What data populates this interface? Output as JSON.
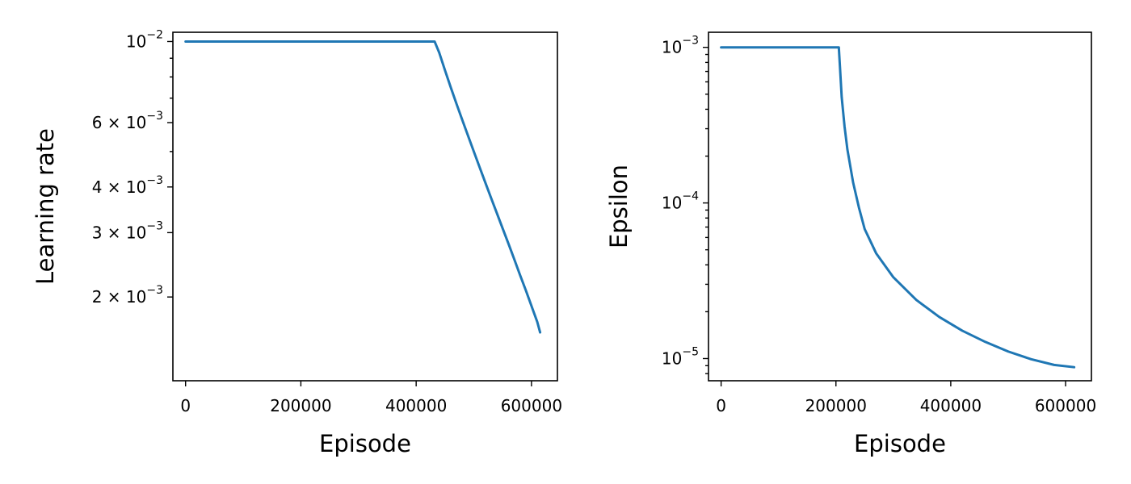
{
  "chart_data": [
    {
      "type": "line",
      "xlabel": "Episode",
      "ylabel": "Learning rate",
      "yscale": "log",
      "xlim": [
        -22000,
        645000
      ],
      "ylim": [
        0.00118,
        0.0106
      ],
      "grid": false,
      "color": "#1f77b4",
      "x_ticks": [
        {
          "value": 0,
          "label": "0"
        },
        {
          "value": 200000,
          "label": "200000"
        },
        {
          "value": 400000,
          "label": "400000"
        },
        {
          "value": 600000,
          "label": "600000"
        }
      ],
      "y_ticks": [
        {
          "value": 0.01,
          "base": "10",
          "exp": "−2"
        },
        {
          "value": 0.006,
          "base": "6 × 10",
          "exp": "−3"
        },
        {
          "value": 0.004,
          "base": "4 × 10",
          "exp": "−3"
        },
        {
          "value": 0.003,
          "base": "3 × 10",
          "exp": "−3"
        },
        {
          "value": 0.002,
          "base": "2 × 10",
          "exp": "−3"
        }
      ],
      "y_minor_ticks": [
        0.009,
        0.008,
        0.007,
        0.005
      ],
      "series": [
        {
          "x": [
            0,
            432000,
            440000,
            450000,
            460000,
            470000,
            480000,
            490000,
            500000,
            510000,
            520000,
            530000,
            540000,
            550000,
            560000,
            570000,
            580000,
            590000,
            600000,
            610000,
            615000
          ],
          "y": [
            0.01,
            0.01,
            0.00932,
            0.00834,
            0.00749,
            0.00675,
            0.0061,
            0.00552,
            0.005,
            0.00453,
            0.00411,
            0.00373,
            0.00339,
            0.00308,
            0.0028,
            0.00254,
            0.0023,
            0.00209,
            0.00189,
            0.00171,
            0.0016
          ]
        }
      ]
    },
    {
      "type": "line",
      "xlabel": "Episode",
      "ylabel": "Epsilon",
      "yscale": "log",
      "xlim": [
        -22000,
        645000
      ],
      "ylim": [
        7.2e-06,
        0.00125
      ],
      "grid": false,
      "color": "#1f77b4",
      "x_ticks": [
        {
          "value": 0,
          "label": "0"
        },
        {
          "value": 200000,
          "label": "200000"
        },
        {
          "value": 400000,
          "label": "400000"
        },
        {
          "value": 600000,
          "label": "600000"
        }
      ],
      "y_ticks": [
        {
          "value": 0.001,
          "base": "10",
          "exp": "−3"
        },
        {
          "value": 0.0001,
          "base": "10",
          "exp": "−4"
        },
        {
          "value": 1e-05,
          "base": "10",
          "exp": "−5"
        }
      ],
      "y_minor_ticks": [
        0.0009,
        0.0008,
        0.0007,
        0.0006,
        0.0005,
        0.0004,
        0.0003,
        0.0002,
        9e-05,
        8e-05,
        7e-05,
        6e-05,
        5e-05,
        4e-05,
        3e-05,
        2e-05,
        9e-06,
        8e-06
      ],
      "series": [
        {
          "x": [
            0,
            205000,
            207000,
            210000,
            215000,
            220000,
            230000,
            240000,
            250000,
            270000,
            300000,
            340000,
            380000,
            420000,
            460000,
            500000,
            540000,
            580000,
            615000
          ],
          "y": [
            0.001,
            0.001,
            0.00075,
            0.00048,
            0.00031,
            0.00022,
            0.000135,
            9.35e-05,
            6.8e-05,
            4.75e-05,
            3.33e-05,
            2.38e-05,
            1.85e-05,
            1.51e-05,
            1.28e-05,
            1.11e-05,
            9.9e-06,
            9.1e-06,
            8.8e-06
          ]
        }
      ]
    }
  ]
}
